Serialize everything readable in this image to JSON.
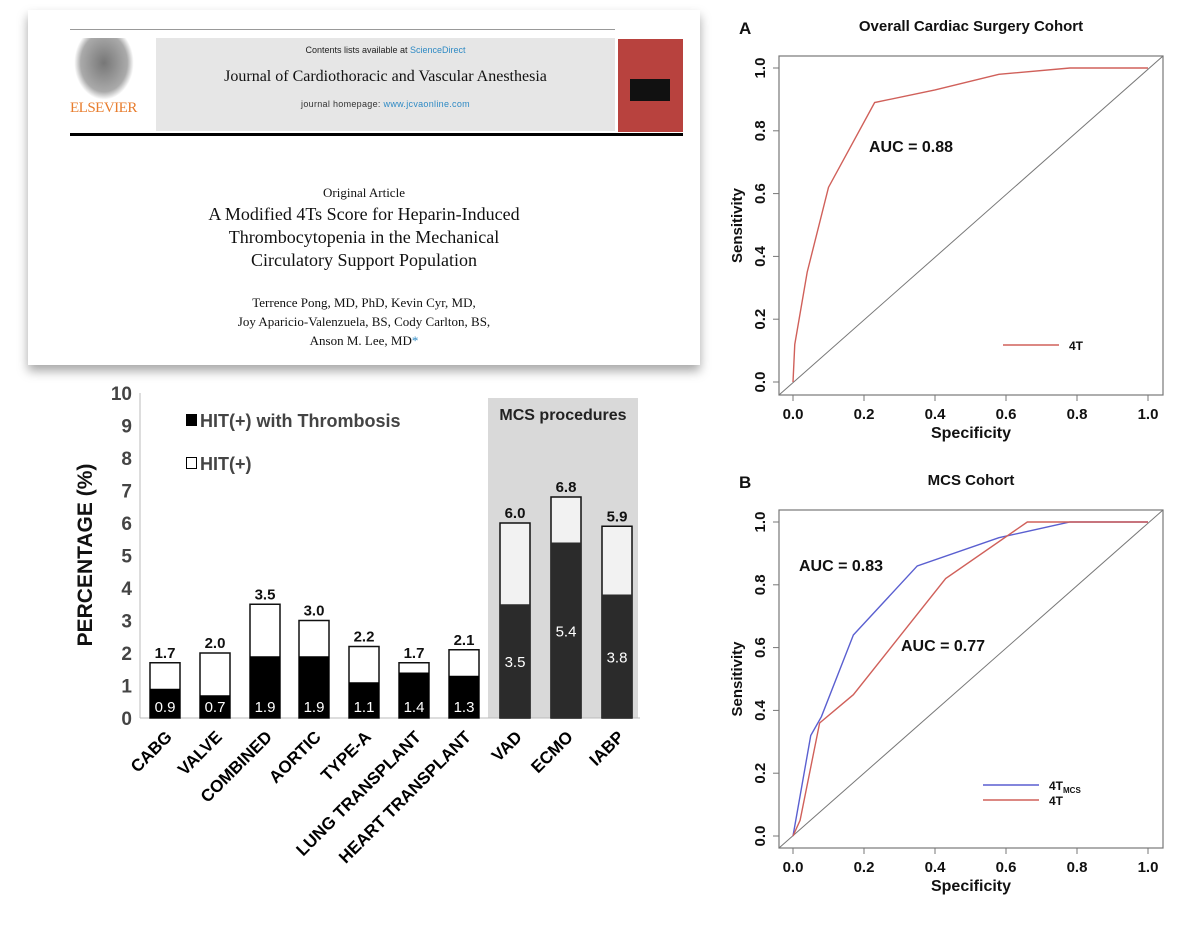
{
  "paper": {
    "contents_prefix": "Contents lists available at ",
    "contents_link": "ScienceDirect",
    "journal": "Journal of Cardiothoracic and Vascular Anesthesia",
    "homepage_prefix": "journal homepage: ",
    "homepage_link": "www.jcvaonline.com",
    "publisher": "ELSEVIER",
    "article_type": "Original Article",
    "title": "A Modified 4Ts Score for Heparin-Induced Thrombocytopenia in the Mechanical Circulatory Support Population",
    "authors": [
      "Terrence Pong, MD, PhD, Kevin Cyr, MD,",
      "Joy Aparicio-Valenzuela, BS, Cody Carlton, BS,",
      "Anson M. Lee, MD"
    ],
    "author_mark": "*"
  },
  "chart_data": [
    {
      "type": "bar",
      "stacked": true,
      "ylabel": "PERCENTAGE (%)",
      "ylim": [
        0,
        10
      ],
      "yticks": [
        "0",
        "1",
        "2",
        "3",
        "4",
        "5",
        "6",
        "7",
        "8",
        "9",
        "10"
      ],
      "categories": [
        "CABG",
        "VALVE",
        "COMBINED",
        "AORTIC",
        "TYPE-A",
        "LUNG TRANSPLANT",
        "HEART TRANSPLANT",
        "VAD",
        "ECMO",
        "IABP"
      ],
      "series": [
        {
          "name": "HIT(+) with Thrombosis",
          "values": [
            0.9,
            0.7,
            1.9,
            1.9,
            1.1,
            1.4,
            1.3,
            3.5,
            5.4,
            3.8
          ]
        },
        {
          "name": "HIT(+)",
          "totals": [
            1.7,
            2.0,
            3.5,
            3.0,
            2.2,
            1.7,
            2.1,
            6.0,
            6.8,
            5.9
          ]
        }
      ],
      "data_labels_total": [
        "1.7",
        "2.0",
        "3.5",
        "3.0",
        "2.2",
        "1.7",
        "2.1",
        "6.0",
        "6.8",
        "5.9"
      ],
      "data_labels_thrombosis": [
        "0.9",
        "0.7",
        "1.9",
        "1.9",
        "1.1",
        "1.4",
        "1.3",
        "3.5",
        "5.4",
        "3.8"
      ],
      "highlight_group": {
        "label": "MCS procedures",
        "categories": [
          "VAD",
          "ECMO",
          "IABP"
        ]
      },
      "legend": "top-left",
      "grid": false
    },
    {
      "type": "line",
      "panel": "A",
      "title": "Overall Cardiac Surgery Cohort",
      "xlabel": "Specificity",
      "ylabel": "Sensitivity",
      "xticks": [
        "0.0",
        "0.2",
        "0.4",
        "0.6",
        "0.8",
        "1.0"
      ],
      "yticks": [
        "0.0",
        "0.2",
        "0.4",
        "0.6",
        "0.8",
        "1.0"
      ],
      "xlim": [
        0,
        1
      ],
      "ylim": [
        0,
        1
      ],
      "series": [
        {
          "name": "4T",
          "color": "#d0605a",
          "x": [
            0,
            0.005,
            0.04,
            0.1,
            0.23,
            0.4,
            0.58,
            0.78,
            1.0
          ],
          "y": [
            0,
            0.12,
            0.35,
            0.62,
            0.89,
            0.93,
            0.98,
            1.0,
            1.0
          ]
        }
      ],
      "annotations": [
        "AUC = 0.88"
      ],
      "reference_line": true,
      "legend": "bottom-right"
    },
    {
      "type": "line",
      "panel": "B",
      "title": "MCS Cohort",
      "xlabel": "Specificity",
      "ylabel": "Sensitivity",
      "xticks": [
        "0.0",
        "0.2",
        "0.4",
        "0.6",
        "0.8",
        "1.0"
      ],
      "yticks": [
        "0.0",
        "0.2",
        "0.4",
        "0.6",
        "0.8",
        "1.0"
      ],
      "xlim": [
        0,
        1
      ],
      "ylim": [
        0,
        1
      ],
      "series": [
        {
          "name": "4T",
          "name_sub": "MCS",
          "color": "#5a5fd0",
          "x": [
            0,
            0.05,
            0.08,
            0.17,
            0.35,
            0.58,
            0.66,
            0.78,
            1.0
          ],
          "y": [
            0,
            0.32,
            0.38,
            0.64,
            0.86,
            0.95,
            0.97,
            1.0,
            1.0
          ]
        },
        {
          "name": "4T",
          "name_sub": "",
          "color": "#d0605a",
          "x": [
            0,
            0.02,
            0.075,
            0.17,
            0.43,
            0.66,
            1.0
          ],
          "y": [
            0,
            0.05,
            0.36,
            0.45,
            0.82,
            1.0,
            1.0
          ]
        }
      ],
      "annotations": [
        "AUC = 0.83",
        "AUC = 0.77"
      ],
      "reference_line": true,
      "legend": "bottom-right"
    }
  ]
}
